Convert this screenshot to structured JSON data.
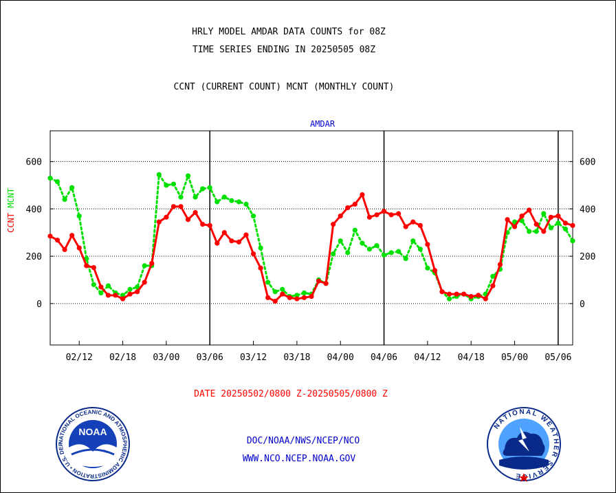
{
  "header": {
    "line1": "HRLY MODEL AMDAR DATA COUNTS for 08Z",
    "line2": "TIME SERIES ENDING IN 20250505 08Z",
    "line3": "CCNT (CURRENT COUNT) MCNT (MONTHLY COUNT)"
  },
  "footer": {
    "date_range": "DATE 20250502/0800 Z-20250505/0800 Z",
    "org_path": "DOC/NOAA/NWS/NCEP/NCO",
    "website": "WWW.NCO.NCEP.NOAA.GOV"
  },
  "logos": {
    "noaa_text": "NOAA",
    "noaa_ring": "NATIONAL OCEANIC AND ATMOSPHERIC ADMINISTRATION • U.S. DEPARTMENT OF COMMERCE •",
    "nws_ring": "NATIONAL WEATHER SERVICE"
  },
  "colors": {
    "ccnt": "#ff0000",
    "mcnt": "#00e000",
    "title": "#0000cc",
    "footer_org": "#0000cc",
    "footer_date": "#ff0000"
  },
  "chart_data": {
    "type": "line",
    "title": "AMDAR",
    "ylabel_parts": [
      {
        "text": "CCNT",
        "color": "#ff0000"
      },
      {
        "text": "MCNT",
        "color": "#00e000"
      }
    ],
    "ylim": [
      -175,
      730
    ],
    "yticks": [
      0,
      200,
      400,
      600
    ],
    "grid": "dotted horizontal at y ticks",
    "x_tick_labels": [
      "02/12",
      "02/18",
      "03/00",
      "03/06",
      "03/12",
      "03/18",
      "04/00",
      "04/06",
      "04/12",
      "04/18",
      "05/00",
      "05/06"
    ],
    "x_tick_hours": [
      4,
      10,
      16,
      22,
      28,
      34,
      40,
      46,
      52,
      58,
      64,
      70
    ],
    "x_range_hours": [
      0,
      72
    ],
    "day_boundaries_hours": [
      22,
      46,
      70
    ],
    "series": [
      {
        "name": "CCNT",
        "color": "#ff0000",
        "values": [
          285,
          268,
          228,
          288,
          235,
          160,
          152,
          70,
          35,
          35,
          20,
          40,
          50,
          90,
          170,
          345,
          365,
          410,
          410,
          355,
          385,
          335,
          330,
          255,
          300,
          265,
          260,
          290,
          210,
          150,
          25,
          10,
          40,
          25,
          20,
          25,
          30,
          95,
          85,
          335,
          370,
          405,
          420,
          460,
          365,
          375,
          390,
          375,
          380,
          325,
          345,
          330,
          250,
          140,
          50,
          40,
          40,
          40,
          30,
          35,
          20,
          75,
          165,
          355,
          325,
          370,
          395,
          335,
          305,
          365,
          370,
          340,
          330
        ]
      },
      {
        "name": "MCNT",
        "color": "#00e000",
        "values": [
          530,
          515,
          440,
          490,
          370,
          190,
          80,
          45,
          75,
          45,
          35,
          60,
          70,
          160,
          160,
          545,
          500,
          505,
          450,
          540,
          450,
          485,
          490,
          430,
          450,
          435,
          430,
          420,
          370,
          235,
          90,
          50,
          60,
          30,
          35,
          45,
          40,
          100,
          85,
          210,
          265,
          215,
          310,
          255,
          230,
          245,
          205,
          215,
          220,
          190,
          265,
          230,
          150,
          130,
          50,
          20,
          30,
          40,
          20,
          30,
          40,
          115,
          145,
          300,
          345,
          350,
          305,
          305,
          380,
          320,
          340,
          315,
          265
        ]
      }
    ]
  }
}
